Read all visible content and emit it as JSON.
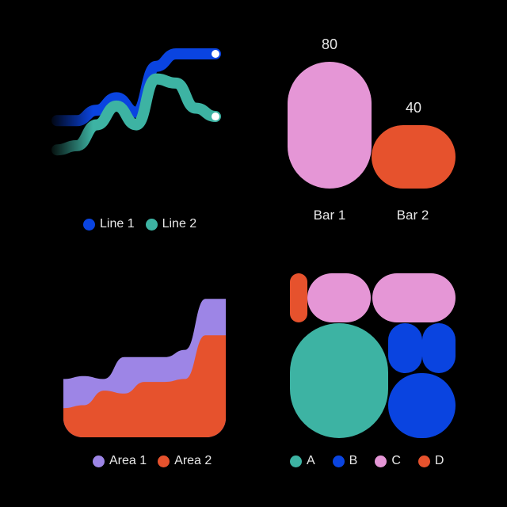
{
  "colors": {
    "blue": "#0a44e0",
    "teal": "#3db3a3",
    "pink": "#e596d6",
    "orange": "#e6522d",
    "purple": "#9d85e6",
    "background": "#000000"
  },
  "chart_data": [
    {
      "type": "line",
      "x": [
        0,
        1,
        2,
        3,
        4,
        5,
        6,
        7,
        8
      ],
      "series": [
        {
          "name": "Line 1",
          "color": "#0a44e0",
          "values": [
            0,
            0,
            2.5,
            5.5,
            2,
            13,
            16,
            16,
            16
          ]
        },
        {
          "name": "Line 2",
          "color": "#3db3a3",
          "values": [
            -7,
            -6,
            -1,
            3.5,
            -1,
            10,
            9,
            3,
            1
          ]
        }
      ],
      "grid": false,
      "legend": "bottom"
    },
    {
      "type": "bar",
      "categories": [
        "Bar 1",
        "Bar 2"
      ],
      "values": [
        80,
        40
      ],
      "data_labels": [
        "80",
        "40"
      ],
      "colors": [
        "#e596d6",
        "#e6522d"
      ]
    },
    {
      "type": "area",
      "x": [
        0,
        1,
        2,
        3,
        4,
        5,
        6,
        7,
        8
      ],
      "series": [
        {
          "name": "Area 1",
          "color": "#9d85e6",
          "values": [
            40,
            42,
            40,
            55,
            55,
            55,
            60,
            95,
            95
          ]
        },
        {
          "name": "Area 2",
          "color": "#e6522d",
          "values": [
            20,
            22,
            32,
            30,
            38,
            38,
            40,
            70,
            70
          ]
        }
      ],
      "grid": false,
      "legend": "bottom"
    },
    {
      "type": "treemap",
      "categories": [
        "A",
        "B",
        "C",
        "D"
      ],
      "colors": [
        "#3db3a3",
        "#0a44e0",
        "#e596d6",
        "#e6522d"
      ],
      "legend": "bottom"
    }
  ]
}
